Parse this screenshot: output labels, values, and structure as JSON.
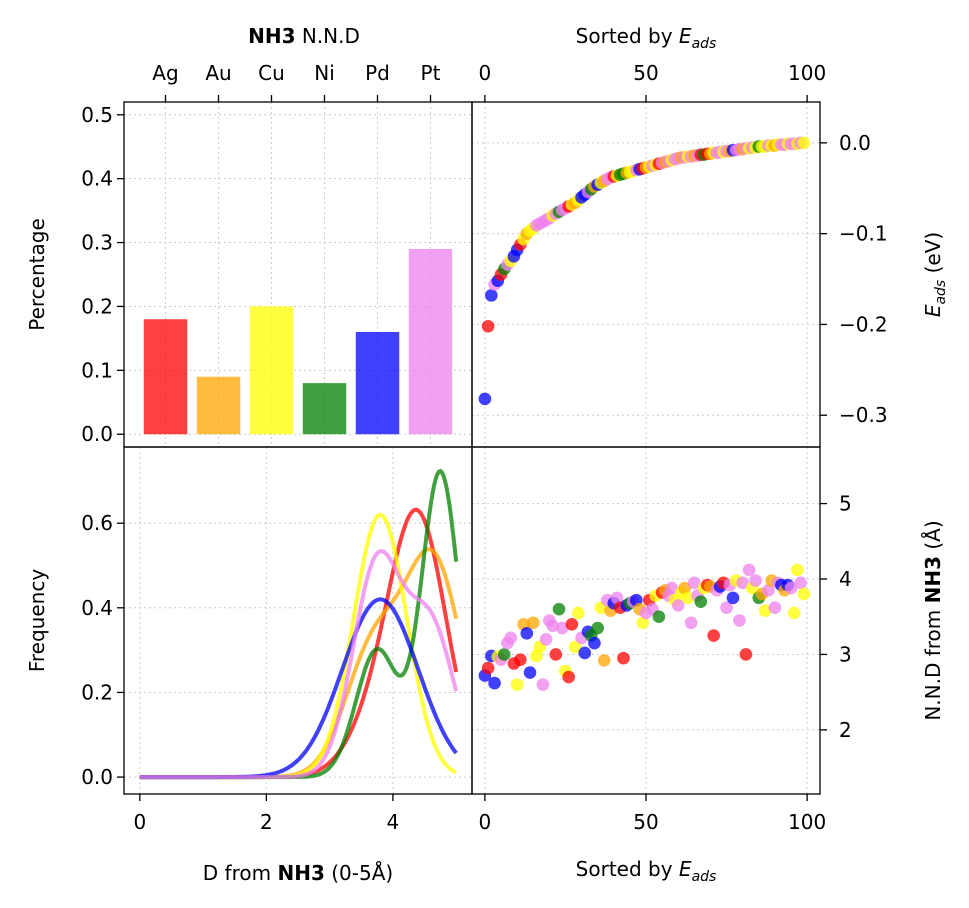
{
  "chart_data": [
    {
      "id": "bar",
      "type": "bar",
      "top_xlabel_bold": "NH3",
      "top_xlabel_rest": "N.N.D",
      "categories": [
        "Ag",
        "Au",
        "Cu",
        "Ni",
        "Pd",
        "Pt"
      ],
      "values": [
        0.18,
        0.09,
        0.2,
        0.08,
        0.16,
        0.29
      ],
      "colors": [
        "#ff0000",
        "#ffa500",
        "#ffff00",
        "#008000",
        "#0000ff",
        "#ee82ee"
      ],
      "ylabel": "Percentage",
      "ylim": [
        -0.02,
        0.52
      ],
      "yticks": [
        "0.0",
        "0.1",
        "0.2",
        "0.3",
        "0.4",
        "0.5"
      ],
      "grid": true
    },
    {
      "id": "eads",
      "type": "scatter",
      "xlabel_top": "Sorted by E_ads",
      "xlim": [
        -4,
        104
      ],
      "xticks": [
        "0",
        "50",
        "100"
      ],
      "ylabel": "E_ads (eV)",
      "ylim": [
        -0.335,
        0.045
      ],
      "yticks": [
        "−0.3",
        "−0.2",
        "−0.1",
        "0.0"
      ],
      "grid": true,
      "points": [
        [
          0,
          -0.282,
          "blue"
        ],
        [
          1,
          -0.202,
          "red"
        ],
        [
          2,
          -0.168,
          "blue"
        ],
        [
          3,
          -0.156,
          "violet"
        ],
        [
          4,
          -0.152,
          "blue"
        ],
        [
          5,
          -0.145,
          "red"
        ],
        [
          6,
          -0.139,
          "green"
        ],
        [
          7,
          -0.134,
          "violet"
        ],
        [
          8,
          -0.13,
          "yellow"
        ],
        [
          9,
          -0.125,
          "blue"
        ],
        [
          10,
          -0.118,
          "blue"
        ],
        [
          11,
          -0.112,
          "red"
        ],
        [
          12,
          -0.106,
          "yellow"
        ],
        [
          13,
          -0.1,
          "orange"
        ],
        [
          14,
          -0.097,
          "yellow"
        ],
        [
          15,
          -0.094,
          "yellow"
        ],
        [
          16,
          -0.091,
          "violet"
        ],
        [
          17,
          -0.089,
          "violet"
        ],
        [
          18,
          -0.087,
          "violet"
        ],
        [
          19,
          -0.085,
          "violet"
        ],
        [
          20,
          -0.083,
          "violet"
        ],
        [
          21,
          -0.08,
          "yellow"
        ],
        [
          22,
          -0.078,
          "violet"
        ],
        [
          23,
          -0.076,
          "green"
        ],
        [
          24,
          -0.074,
          "violet"
        ],
        [
          25,
          -0.072,
          "violet"
        ],
        [
          26,
          -0.07,
          "red"
        ],
        [
          27,
          -0.068,
          "yellow"
        ],
        [
          28,
          -0.066,
          "orange"
        ],
        [
          29,
          -0.063,
          "yellow"
        ],
        [
          30,
          -0.06,
          "blue"
        ],
        [
          31,
          -0.057,
          "blue"
        ],
        [
          32,
          -0.054,
          "violet"
        ],
        [
          33,
          -0.051,
          "green"
        ],
        [
          34,
          -0.048,
          "orange"
        ],
        [
          35,
          -0.046,
          "blue"
        ],
        [
          36,
          -0.044,
          "yellow"
        ],
        [
          37,
          -0.042,
          "orange"
        ],
        [
          38,
          -0.04,
          "violet"
        ],
        [
          39,
          -0.038,
          "violet"
        ],
        [
          40,
          -0.037,
          "red"
        ],
        [
          41,
          -0.036,
          "yellow"
        ],
        [
          42,
          -0.035,
          "green"
        ],
        [
          43,
          -0.034,
          "green"
        ],
        [
          44,
          -0.033,
          "orange"
        ],
        [
          45,
          -0.032,
          "yellow"
        ],
        [
          46,
          -0.031,
          "yellow"
        ],
        [
          47,
          -0.03,
          "violet"
        ],
        [
          48,
          -0.029,
          "blue"
        ],
        [
          49,
          -0.028,
          "red"
        ],
        [
          50,
          -0.027,
          "orange"
        ],
        [
          51,
          -0.026,
          "yellow"
        ],
        [
          52,
          -0.025,
          "violet"
        ],
        [
          53,
          -0.024,
          "yellow"
        ],
        [
          54,
          -0.023,
          "red"
        ],
        [
          55,
          -0.022,
          "violet"
        ],
        [
          56,
          -0.021,
          "orange"
        ],
        [
          57,
          -0.02,
          "violet"
        ],
        [
          58,
          -0.019,
          "yellow"
        ],
        [
          59,
          -0.018,
          "violet"
        ],
        [
          60,
          -0.017,
          "violet"
        ],
        [
          61,
          -0.016,
          "orange"
        ],
        [
          62,
          -0.016,
          "violet"
        ],
        [
          63,
          -0.015,
          "yellow"
        ],
        [
          64,
          -0.015,
          "violet"
        ],
        [
          65,
          -0.014,
          "orange"
        ],
        [
          66,
          -0.014,
          "violet"
        ],
        [
          67,
          -0.013,
          "red"
        ],
        [
          68,
          -0.013,
          "green"
        ],
        [
          69,
          -0.012,
          "red"
        ],
        [
          70,
          -0.012,
          "orange"
        ],
        [
          71,
          -0.011,
          "yellow"
        ],
        [
          72,
          -0.011,
          "violet"
        ],
        [
          73,
          -0.01,
          "violet"
        ],
        [
          74,
          -0.01,
          "yellow"
        ],
        [
          75,
          -0.009,
          "violet"
        ],
        [
          76,
          -0.009,
          "orange"
        ],
        [
          77,
          -0.008,
          "blue"
        ],
        [
          78,
          -0.008,
          "violet"
        ],
        [
          79,
          -0.007,
          "violet"
        ],
        [
          80,
          -0.007,
          "orange"
        ],
        [
          81,
          -0.006,
          "violet"
        ],
        [
          82,
          -0.006,
          "yellow"
        ],
        [
          83,
          -0.005,
          "violet"
        ],
        [
          84,
          -0.005,
          "yellow"
        ],
        [
          85,
          -0.004,
          "green"
        ],
        [
          86,
          -0.004,
          "yellow"
        ],
        [
          87,
          -0.004,
          "yellow"
        ],
        [
          88,
          -0.003,
          "violet"
        ],
        [
          89,
          -0.003,
          "yellow"
        ],
        [
          90,
          -0.003,
          "orange"
        ],
        [
          91,
          -0.002,
          "yellow"
        ],
        [
          92,
          -0.002,
          "violet"
        ],
        [
          93,
          -0.002,
          "violet"
        ],
        [
          94,
          -0.001,
          "yellow"
        ],
        [
          95,
          -0.001,
          "violet"
        ],
        [
          96,
          -0.001,
          "violet"
        ],
        [
          97,
          -0.001,
          "yellow"
        ],
        [
          98,
          0.0,
          "violet"
        ],
        [
          99,
          0.0,
          "yellow"
        ]
      ]
    },
    {
      "id": "kde",
      "type": "line",
      "xlabel_pre": "D from",
      "xlabel_bold": "NH3",
      "xlabel_post": "(0-5Å)",
      "ylabel": "Frequency",
      "xlim": [
        -0.25,
        5.25
      ],
      "xticks": [
        "0",
        "2",
        "4"
      ],
      "ylim": [
        -0.04,
        0.78
      ],
      "yticks": [
        "0.0",
        "0.2",
        "0.4",
        "0.6"
      ],
      "grid": true,
      "series": [
        {
          "color": "#ff0000",
          "components": [
            [
              4.4,
              0.45,
              0.6
            ],
            [
              3.7,
              0.45,
              0.1
            ]
          ]
        },
        {
          "color": "#ffa500",
          "components": [
            [
              4.65,
              0.45,
              0.5
            ],
            [
              3.7,
              0.45,
              0.3
            ]
          ]
        },
        {
          "color": "#ffff00",
          "components": [
            [
              3.8,
              0.42,
              0.62
            ]
          ]
        },
        {
          "color": "#008000",
          "components": [
            [
              4.75,
              0.3,
              0.72
            ],
            [
              3.75,
              0.33,
              0.3
            ]
          ]
        },
        {
          "color": "#0000ff",
          "components": [
            [
              3.8,
              0.6,
              0.42
            ]
          ]
        },
        {
          "color": "#ee82ee",
          "components": [
            [
              3.75,
              0.38,
              0.5
            ],
            [
              4.6,
              0.38,
              0.35
            ]
          ]
        }
      ]
    },
    {
      "id": "nnd",
      "type": "scatter",
      "xlabel": "Sorted by E_ads",
      "ylabel_pre": "N.N.D from",
      "ylabel_bold": "NH3",
      "ylabel_post": "(Å)",
      "xlim": [
        -4,
        104
      ],
      "xticks": [
        "0",
        "50",
        "100"
      ],
      "ylim": [
        1.15,
        5.75
      ],
      "yticks": [
        "2",
        "3",
        "4",
        "5"
      ],
      "grid": true,
      "points": [
        [
          0,
          2.72,
          "blue"
        ],
        [
          1,
          2.82,
          "red"
        ],
        [
          2,
          2.98,
          "blue"
        ],
        [
          3,
          2.62,
          "blue"
        ],
        [
          4,
          2.97,
          "yellow"
        ],
        [
          5,
          2.93,
          "violet"
        ],
        [
          6,
          3.0,
          "green"
        ],
        [
          7,
          3.15,
          "violet"
        ],
        [
          8,
          3.22,
          "violet"
        ],
        [
          9,
          2.88,
          "red"
        ],
        [
          10,
          2.6,
          "yellow"
        ],
        [
          11,
          2.93,
          "red"
        ],
        [
          12,
          3.4,
          "orange"
        ],
        [
          13,
          3.28,
          "blue"
        ],
        [
          14,
          2.76,
          "blue"
        ],
        [
          15,
          3.42,
          "orange"
        ],
        [
          16,
          2.98,
          "yellow"
        ],
        [
          17,
          3.1,
          "yellow"
        ],
        [
          18,
          2.6,
          "violet"
        ],
        [
          19,
          3.2,
          "violet"
        ],
        [
          20,
          3.45,
          "violet"
        ],
        [
          21,
          3.38,
          "violet"
        ],
        [
          22,
          3.0,
          "red"
        ],
        [
          23,
          3.6,
          "green"
        ],
        [
          24,
          3.35,
          "violet"
        ],
        [
          25,
          2.78,
          "yellow"
        ],
        [
          26,
          2.7,
          "red"
        ],
        [
          27,
          3.4,
          "red"
        ],
        [
          28,
          3.1,
          "yellow"
        ],
        [
          29,
          3.55,
          "yellow"
        ],
        [
          30,
          3.22,
          "violet"
        ],
        [
          31,
          3.02,
          "blue"
        ],
        [
          32,
          3.3,
          "blue"
        ],
        [
          33,
          3.25,
          "green"
        ],
        [
          34,
          3.15,
          "blue"
        ],
        [
          35,
          3.35,
          "green"
        ],
        [
          36,
          3.62,
          "yellow"
        ],
        [
          37,
          2.92,
          "orange"
        ],
        [
          38,
          3.72,
          "violet"
        ],
        [
          39,
          3.58,
          "orange"
        ],
        [
          40,
          3.68,
          "blue"
        ],
        [
          41,
          3.75,
          "violet"
        ],
        [
          42,
          3.62,
          "red"
        ],
        [
          43,
          2.95,
          "red"
        ],
        [
          44,
          3.65,
          "blue"
        ],
        [
          45,
          3.68,
          "green"
        ],
        [
          46,
          3.7,
          "violet"
        ],
        [
          47,
          3.72,
          "blue"
        ],
        [
          48,
          3.6,
          "orange"
        ],
        [
          49,
          3.42,
          "yellow"
        ],
        [
          50,
          3.55,
          "violet"
        ],
        [
          51,
          3.72,
          "red"
        ],
        [
          52,
          3.6,
          "violet"
        ],
        [
          53,
          3.78,
          "yellow"
        ],
        [
          54,
          3.5,
          "green"
        ],
        [
          55,
          3.82,
          "red"
        ],
        [
          56,
          3.85,
          "orange"
        ],
        [
          57,
          3.78,
          "violet"
        ],
        [
          58,
          3.88,
          "violet"
        ],
        [
          59,
          3.72,
          "yellow"
        ],
        [
          60,
          3.65,
          "violet"
        ],
        [
          61,
          3.82,
          "yellow"
        ],
        [
          62,
          3.88,
          "orange"
        ],
        [
          63,
          3.75,
          "yellow"
        ],
        [
          64,
          3.42,
          "violet"
        ],
        [
          65,
          3.95,
          "violet"
        ],
        [
          66,
          3.78,
          "violet"
        ],
        [
          67,
          3.7,
          "green"
        ],
        [
          68,
          3.88,
          "yellow"
        ],
        [
          69,
          3.92,
          "red"
        ],
        [
          70,
          3.9,
          "orange"
        ],
        [
          71,
          3.25,
          "red"
        ],
        [
          72,
          3.85,
          "violet"
        ],
        [
          73,
          3.9,
          "blue"
        ],
        [
          74,
          3.95,
          "red"
        ],
        [
          75,
          3.62,
          "violet"
        ],
        [
          76,
          3.92,
          "violet"
        ],
        [
          77,
          3.75,
          "blue"
        ],
        [
          78,
          3.98,
          "yellow"
        ],
        [
          79,
          3.45,
          "violet"
        ],
        [
          80,
          3.95,
          "violet"
        ],
        [
          81,
          3.0,
          "red"
        ],
        [
          82,
          4.12,
          "violet"
        ],
        [
          83,
          3.88,
          "yellow"
        ],
        [
          84,
          3.98,
          "violet"
        ],
        [
          85,
          3.75,
          "green"
        ],
        [
          86,
          3.8,
          "orange"
        ],
        [
          87,
          3.58,
          "yellow"
        ],
        [
          88,
          3.85,
          "violet"
        ],
        [
          89,
          3.98,
          "orange"
        ],
        [
          90,
          3.62,
          "violet"
        ],
        [
          91,
          3.95,
          "violet"
        ],
        [
          92,
          3.92,
          "blue"
        ],
        [
          93,
          3.85,
          "orange"
        ],
        [
          94,
          3.92,
          "blue"
        ],
        [
          95,
          3.88,
          "violet"
        ],
        [
          96,
          3.55,
          "yellow"
        ],
        [
          97,
          4.12,
          "yellow"
        ],
        [
          98,
          3.95,
          "violet"
        ],
        [
          99,
          3.8,
          "yellow"
        ]
      ]
    }
  ],
  "palette": {
    "red": "#ff0000",
    "orange": "#ffa500",
    "yellow": "#ffff00",
    "green": "#008000",
    "blue": "#0000ff",
    "violet": "#ee82ee"
  }
}
